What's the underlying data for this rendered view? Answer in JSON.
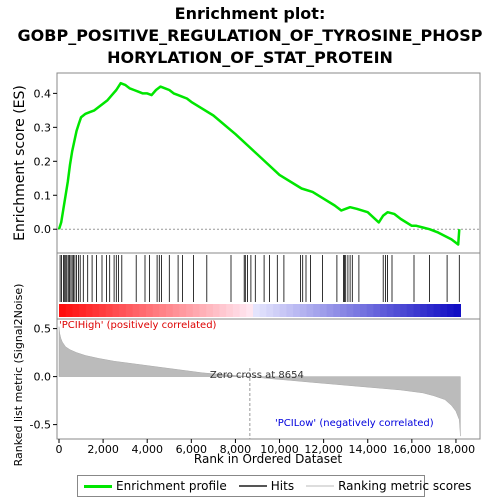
{
  "title_lines": [
    "Enrichment plot:",
    "GOBP_POSITIVE_REGULATION_OF_TYROSINE_PHOSP",
    "HORYLATION_OF_STAT_PROTEIN"
  ],
  "colors": {
    "es_line": "#00e600",
    "hits": "#000000",
    "metric_fill": "#bbbbbb",
    "pos_label": "#dd0000",
    "neg_label": "#0000dd",
    "zero_line": "#999999"
  },
  "chart_data": {
    "type": "line",
    "xlabel": "Rank in Ordered Dataset",
    "es_panel": {
      "ylabel": "Enrichment score (ES)",
      "ylim": [
        -0.07,
        0.46
      ],
      "yticks": [
        0.0,
        0.1,
        0.2,
        0.3,
        0.4
      ],
      "ytick_labels": [
        "0.0",
        "0.1",
        "0.2",
        "0.3",
        "0.4"
      ],
      "series_name": "Enrichment profile",
      "x": [
        0,
        100,
        200,
        300,
        400,
        500,
        600,
        700,
        800,
        900,
        1000,
        1200,
        1400,
        1600,
        1800,
        2000,
        2200,
        2400,
        2600,
        2800,
        3000,
        3200,
        3400,
        3600,
        3800,
        4000,
        4200,
        4400,
        4600,
        4800,
        5000,
        5200,
        5400,
        5600,
        5800,
        6000,
        6500,
        7000,
        8000,
        9000,
        10000,
        11000,
        11500,
        12000,
        12500,
        12800,
        13000,
        13200,
        13500,
        14000,
        14500,
        14700,
        14900,
        15200,
        15500,
        16000,
        16200,
        16500,
        16800,
        17200,
        17500,
        17800,
        18100,
        18150
      ],
      "y": [
        0.0,
        0.02,
        0.06,
        0.1,
        0.14,
        0.19,
        0.23,
        0.26,
        0.29,
        0.31,
        0.33,
        0.34,
        0.345,
        0.35,
        0.36,
        0.37,
        0.38,
        0.395,
        0.41,
        0.43,
        0.425,
        0.415,
        0.41,
        0.405,
        0.4,
        0.4,
        0.395,
        0.41,
        0.42,
        0.415,
        0.41,
        0.4,
        0.395,
        0.39,
        0.385,
        0.375,
        0.355,
        0.335,
        0.28,
        0.22,
        0.16,
        0.12,
        0.11,
        0.09,
        0.07,
        0.055,
        0.06,
        0.065,
        0.06,
        0.05,
        0.02,
        0.04,
        0.05,
        0.045,
        0.03,
        0.01,
        0.01,
        0.005,
        0.0,
        -0.01,
        -0.02,
        -0.03,
        -0.045,
        0.0
      ],
      "hits": [
        50,
        120,
        200,
        260,
        310,
        360,
        420,
        480,
        540,
        600,
        660,
        720,
        800,
        880,
        960,
        1100,
        1300,
        1500,
        1700,
        1950,
        2150,
        2300,
        2500,
        2600,
        2700,
        2850,
        3500,
        3900,
        4100,
        4450,
        4550,
        4650,
        5000,
        5400,
        5600,
        6100,
        6700,
        7800,
        8400,
        8450,
        8550,
        8700,
        8900,
        9300,
        9550,
        9900,
        10200,
        10950,
        11050,
        11200,
        11400,
        11950,
        12600,
        12900,
        12950,
        13000,
        13100,
        13200,
        13300,
        13600,
        14700,
        14800,
        14900,
        15100,
        16100,
        16800,
        17600,
        18150
      ]
    },
    "metric_panel": {
      "ylabel": "Ranked list metric (Signal2Noise)",
      "ylim": [
        -0.65,
        0.6
      ],
      "yticks": [
        0.5,
        0.0,
        -0.5
      ],
      "ytick_labels": [
        "0.5",
        "0.0",
        "-0.5"
      ],
      "x": [
        0,
        30,
        80,
        150,
        300,
        500,
        800,
        1200,
        1800,
        2500,
        3500,
        4500,
        5500,
        6500,
        7500,
        8654,
        9500,
        10500,
        11500,
        12500,
        13500,
        14500,
        15500,
        16500,
        17000,
        17500,
        17800,
        18000,
        18150,
        18200
      ],
      "y": [
        0.52,
        0.45,
        0.4,
        0.36,
        0.31,
        0.28,
        0.25,
        0.22,
        0.19,
        0.16,
        0.13,
        0.1,
        0.07,
        0.04,
        0.02,
        0.0,
        -0.02,
        -0.04,
        -0.06,
        -0.08,
        -0.1,
        -0.12,
        -0.14,
        -0.17,
        -0.2,
        -0.24,
        -0.3,
        -0.36,
        -0.45,
        -0.62
      ],
      "pos_label": "'PCIHigh' (positively correlated)",
      "neg_label": "'PCILow' (negatively correlated)",
      "zero_cross_label": "Zero cross at 8654",
      "zero_cross": 8654
    },
    "xlim": [
      0,
      19000
    ],
    "xticks": [
      0,
      2000,
      4000,
      6000,
      8000,
      10000,
      12000,
      14000,
      16000,
      18000
    ],
    "xtick_labels": [
      "0",
      "2,000",
      "4,000",
      "6,000",
      "8,000",
      "10,000",
      "12,000",
      "14,000",
      "16,000",
      "18,000"
    ],
    "legend": [
      "Enrichment profile",
      "Hits",
      "Ranking metric scores"
    ],
    "legend_position": "bottom"
  }
}
